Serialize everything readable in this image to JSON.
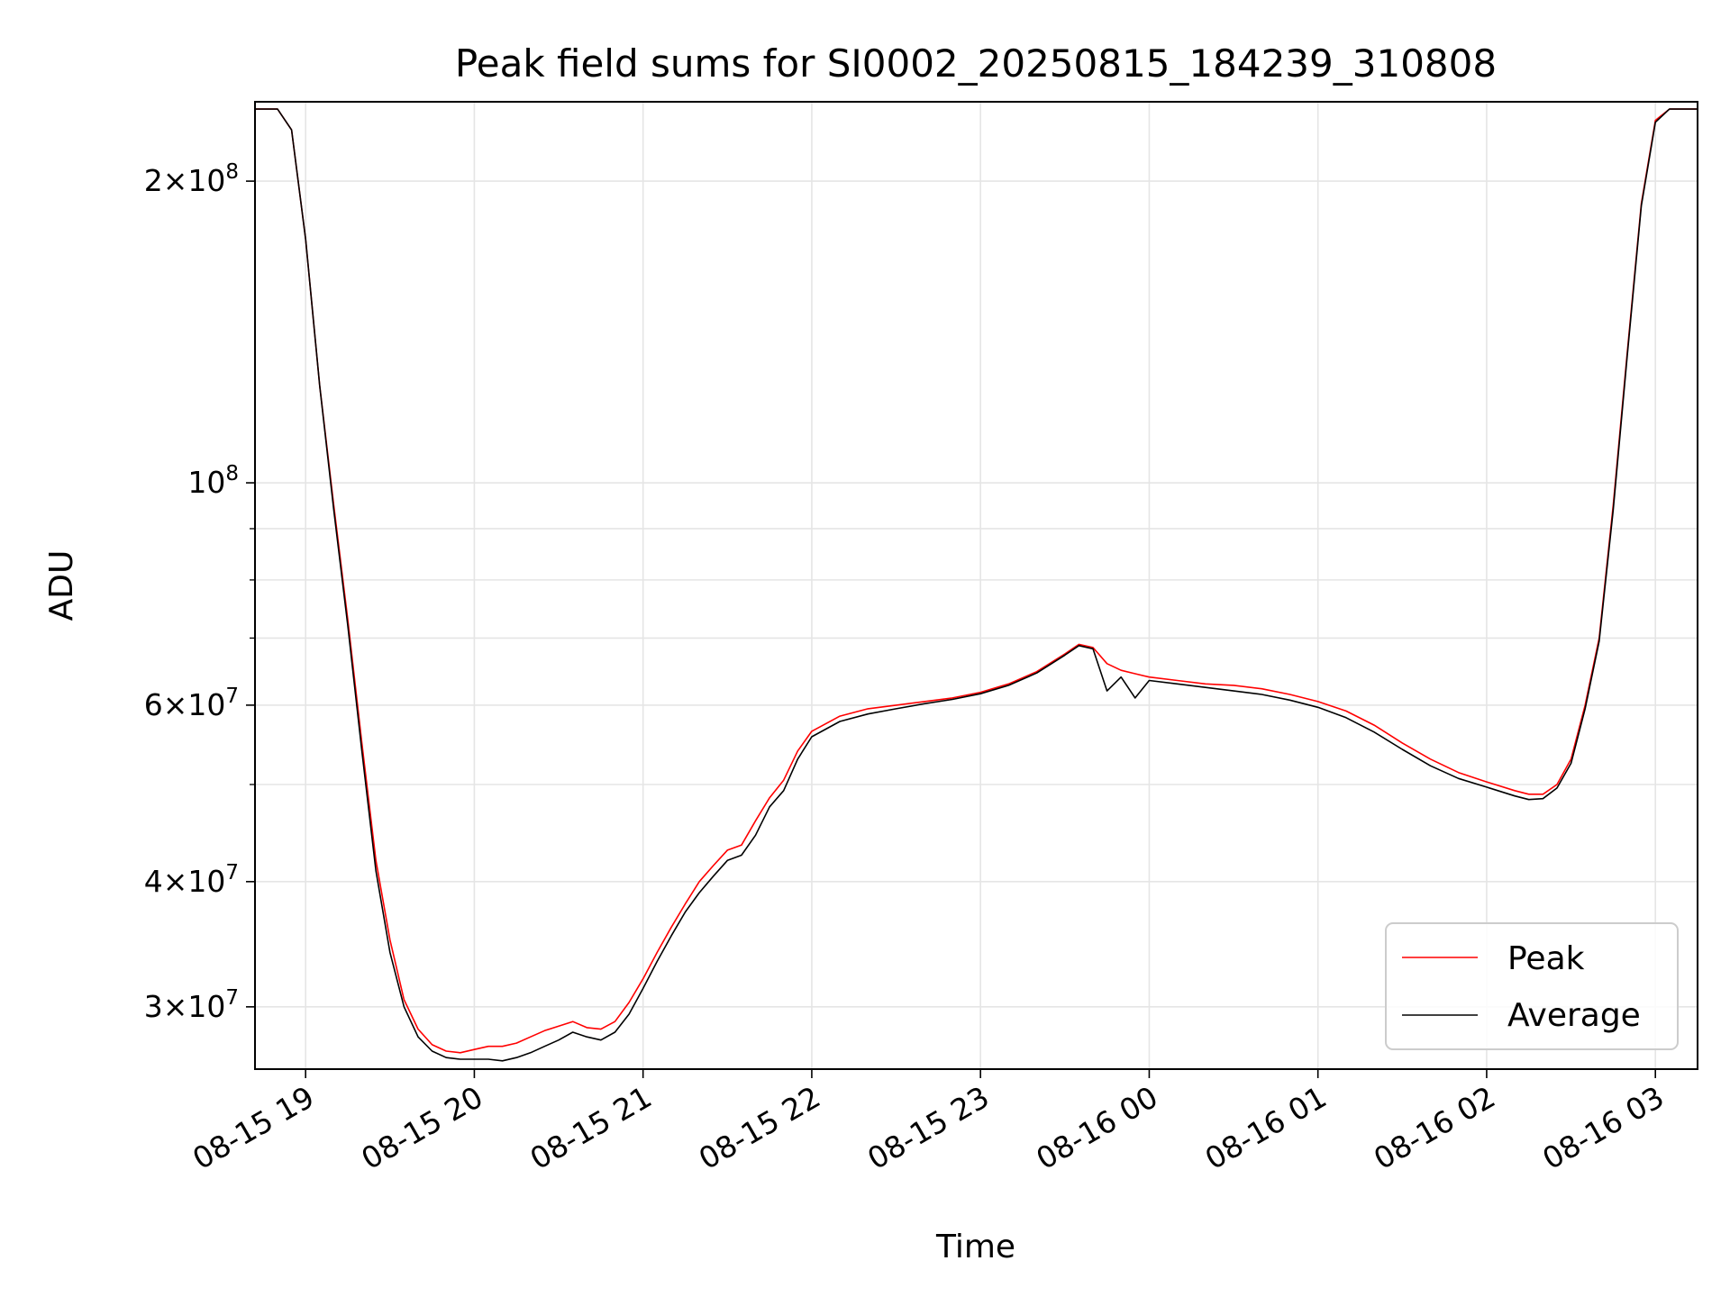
{
  "chart_data": {
    "type": "line",
    "title": "Peak field sums for SI0002_20250815_184239_310808",
    "xlabel": "Time",
    "ylabel": "ADU",
    "y_scale": "log",
    "ylim": [
      26000000,
      240000000
    ],
    "xlim": [
      "2025-08-15 18:42",
      "2025-08-16 03:15"
    ],
    "grid": true,
    "legend_position": "lower right",
    "x_ticks": [
      {
        "t": "2025-08-15 19:00",
        "label": "08-15 19"
      },
      {
        "t": "2025-08-15 20:00",
        "label": "08-15 20"
      },
      {
        "t": "2025-08-15 21:00",
        "label": "08-15 21"
      },
      {
        "t": "2025-08-15 22:00",
        "label": "08-15 22"
      },
      {
        "t": "2025-08-15 23:00",
        "label": "08-15 23"
      },
      {
        "t": "2025-08-16 00:00",
        "label": "08-16 00"
      },
      {
        "t": "2025-08-16 01:00",
        "label": "08-16 01"
      },
      {
        "t": "2025-08-16 02:00",
        "label": "08-16 02"
      },
      {
        "t": "2025-08-16 03:00",
        "label": "08-16 03"
      }
    ],
    "y_ticks_major": [
      {
        "value": 30000000,
        "base": "3",
        "exp": "7"
      },
      {
        "value": 40000000,
        "base": "4",
        "exp": "7"
      },
      {
        "value": 60000000,
        "base": "6",
        "exp": "7"
      },
      {
        "value": 100000000,
        "base": "",
        "exp": "8"
      },
      {
        "value": 200000000,
        "base": "2",
        "exp": "8"
      }
    ],
    "y_ticks_minor": [
      50000000,
      70000000,
      80000000,
      90000000
    ],
    "series": [
      {
        "name": "Peak",
        "color": "#ff0000",
        "points": [
          [
            "2025-08-15 18:42",
            236000000
          ],
          [
            "2025-08-15 18:50",
            236000000
          ],
          [
            "2025-08-15 18:55",
            225000000
          ],
          [
            "2025-08-15 19:00",
            175000000
          ],
          [
            "2025-08-15 19:05",
            125000000
          ],
          [
            "2025-08-15 19:10",
            95000000
          ],
          [
            "2025-08-15 19:15",
            73000000
          ],
          [
            "2025-08-15 19:20",
            55000000
          ],
          [
            "2025-08-15 19:25",
            42000000
          ],
          [
            "2025-08-15 19:30",
            35000000
          ],
          [
            "2025-08-15 19:35",
            30500000
          ],
          [
            "2025-08-15 19:40",
            28500000
          ],
          [
            "2025-08-15 19:45",
            27500000
          ],
          [
            "2025-08-15 19:50",
            27100000
          ],
          [
            "2025-08-15 19:55",
            27000000
          ],
          [
            "2025-08-15 20:00",
            27200000
          ],
          [
            "2025-08-15 20:05",
            27400000
          ],
          [
            "2025-08-15 20:10",
            27400000
          ],
          [
            "2025-08-15 20:15",
            27600000
          ],
          [
            "2025-08-15 20:20",
            28000000
          ],
          [
            "2025-08-15 20:25",
            28400000
          ],
          [
            "2025-08-15 20:30",
            28700000
          ],
          [
            "2025-08-15 20:35",
            29000000
          ],
          [
            "2025-08-15 20:40",
            28600000
          ],
          [
            "2025-08-15 20:45",
            28500000
          ],
          [
            "2025-08-15 20:50",
            29000000
          ],
          [
            "2025-08-15 20:55",
            30300000
          ],
          [
            "2025-08-15 21:00",
            32000000
          ],
          [
            "2025-08-15 21:05",
            34000000
          ],
          [
            "2025-08-15 21:10",
            36000000
          ],
          [
            "2025-08-15 21:15",
            38000000
          ],
          [
            "2025-08-15 21:20",
            40000000
          ],
          [
            "2025-08-15 21:25",
            41500000
          ],
          [
            "2025-08-15 21:30",
            43000000
          ],
          [
            "2025-08-15 21:35",
            43500000
          ],
          [
            "2025-08-15 21:40",
            46000000
          ],
          [
            "2025-08-15 21:45",
            48500000
          ],
          [
            "2025-08-15 21:50",
            50500000
          ],
          [
            "2025-08-15 21:55",
            54000000
          ],
          [
            "2025-08-15 22:00",
            56500000
          ],
          [
            "2025-08-15 22:10",
            58500000
          ],
          [
            "2025-08-15 22:20",
            59500000
          ],
          [
            "2025-08-15 22:30",
            60000000
          ],
          [
            "2025-08-15 22:40",
            60500000
          ],
          [
            "2025-08-15 22:50",
            61000000
          ],
          [
            "2025-08-15 23:00",
            61800000
          ],
          [
            "2025-08-15 23:10",
            63000000
          ],
          [
            "2025-08-15 23:20",
            64800000
          ],
          [
            "2025-08-15 23:30",
            67500000
          ],
          [
            "2025-08-15 23:35",
            69000000
          ],
          [
            "2025-08-15 23:40",
            68500000
          ],
          [
            "2025-08-15 23:45",
            66000000
          ],
          [
            "2025-08-15 23:50",
            65000000
          ],
          [
            "2025-08-15 23:55",
            64500000
          ],
          [
            "2025-08-16 00:00",
            64000000
          ],
          [
            "2025-08-16 00:10",
            63500000
          ],
          [
            "2025-08-16 00:20",
            63000000
          ],
          [
            "2025-08-16 00:30",
            62800000
          ],
          [
            "2025-08-16 00:40",
            62300000
          ],
          [
            "2025-08-16 00:50",
            61500000
          ],
          [
            "2025-08-16 01:00",
            60500000
          ],
          [
            "2025-08-16 01:10",
            59200000
          ],
          [
            "2025-08-16 01:20",
            57300000
          ],
          [
            "2025-08-16 01:30",
            55000000
          ],
          [
            "2025-08-16 01:40",
            53000000
          ],
          [
            "2025-08-16 01:50",
            51400000
          ],
          [
            "2025-08-16 02:00",
            50300000
          ],
          [
            "2025-08-16 02:10",
            49300000
          ],
          [
            "2025-08-16 02:15",
            48900000
          ],
          [
            "2025-08-16 02:20",
            48900000
          ],
          [
            "2025-08-16 02:25",
            50000000
          ],
          [
            "2025-08-16 02:30",
            53000000
          ],
          [
            "2025-08-16 02:35",
            60000000
          ],
          [
            "2025-08-16 02:40",
            70000000
          ],
          [
            "2025-08-16 02:45",
            95000000
          ],
          [
            "2025-08-16 02:50",
            135000000
          ],
          [
            "2025-08-16 02:55",
            190000000
          ],
          [
            "2025-08-16 03:00",
            230000000
          ],
          [
            "2025-08-16 03:05",
            236000000
          ],
          [
            "2025-08-16 03:15",
            236000000
          ]
        ]
      },
      {
        "name": "Average",
        "color": "#000000",
        "points": [
          [
            "2025-08-15 18:42",
            236000000
          ],
          [
            "2025-08-15 18:50",
            236000000
          ],
          [
            "2025-08-15 18:55",
            225000000
          ],
          [
            "2025-08-15 19:00",
            175000000
          ],
          [
            "2025-08-15 19:05",
            125000000
          ],
          [
            "2025-08-15 19:10",
            94000000
          ],
          [
            "2025-08-15 19:15",
            72000000
          ],
          [
            "2025-08-15 19:20",
            54000000
          ],
          [
            "2025-08-15 19:25",
            41000000
          ],
          [
            "2025-08-15 19:30",
            34000000
          ],
          [
            "2025-08-15 19:35",
            30000000
          ],
          [
            "2025-08-15 19:40",
            28000000
          ],
          [
            "2025-08-15 19:45",
            27100000
          ],
          [
            "2025-08-15 19:50",
            26700000
          ],
          [
            "2025-08-15 19:55",
            26600000
          ],
          [
            "2025-08-15 20:00",
            26600000
          ],
          [
            "2025-08-15 20:05",
            26600000
          ],
          [
            "2025-08-15 20:10",
            26500000
          ],
          [
            "2025-08-15 20:15",
            26700000
          ],
          [
            "2025-08-15 20:20",
            27000000
          ],
          [
            "2025-08-15 20:25",
            27400000
          ],
          [
            "2025-08-15 20:30",
            27800000
          ],
          [
            "2025-08-15 20:35",
            28300000
          ],
          [
            "2025-08-15 20:40",
            28000000
          ],
          [
            "2025-08-15 20:45",
            27800000
          ],
          [
            "2025-08-15 20:50",
            28300000
          ],
          [
            "2025-08-15 20:55",
            29500000
          ],
          [
            "2025-08-15 21:00",
            31300000
          ],
          [
            "2025-08-15 21:05",
            33300000
          ],
          [
            "2025-08-15 21:10",
            35300000
          ],
          [
            "2025-08-15 21:15",
            37300000
          ],
          [
            "2025-08-15 21:20",
            39000000
          ],
          [
            "2025-08-15 21:25",
            40500000
          ],
          [
            "2025-08-15 21:30",
            42000000
          ],
          [
            "2025-08-15 21:35",
            42500000
          ],
          [
            "2025-08-15 21:40",
            44500000
          ],
          [
            "2025-08-15 21:45",
            47500000
          ],
          [
            "2025-08-15 21:50",
            49300000
          ],
          [
            "2025-08-15 21:55",
            53000000
          ],
          [
            "2025-08-15 22:00",
            55800000
          ],
          [
            "2025-08-15 22:10",
            57800000
          ],
          [
            "2025-08-15 22:20",
            58800000
          ],
          [
            "2025-08-15 22:30",
            59500000
          ],
          [
            "2025-08-15 22:40",
            60200000
          ],
          [
            "2025-08-15 22:50",
            60800000
          ],
          [
            "2025-08-15 23:00",
            61600000
          ],
          [
            "2025-08-15 23:10",
            62800000
          ],
          [
            "2025-08-15 23:20",
            64600000
          ],
          [
            "2025-08-15 23:30",
            67300000
          ],
          [
            "2025-08-15 23:35",
            68800000
          ],
          [
            "2025-08-15 23:40",
            68300000
          ],
          [
            "2025-08-15 23:45",
            62000000
          ],
          [
            "2025-08-15 23:50",
            64000000
          ],
          [
            "2025-08-15 23:55",
            61000000
          ],
          [
            "2025-08-16 00:00",
            63500000
          ],
          [
            "2025-08-16 00:10",
            63000000
          ],
          [
            "2025-08-16 00:20",
            62500000
          ],
          [
            "2025-08-16 00:30",
            62000000
          ],
          [
            "2025-08-16 00:40",
            61500000
          ],
          [
            "2025-08-16 00:50",
            60700000
          ],
          [
            "2025-08-16 01:00",
            59700000
          ],
          [
            "2025-08-16 01:10",
            58300000
          ],
          [
            "2025-08-16 01:20",
            56400000
          ],
          [
            "2025-08-16 01:30",
            54200000
          ],
          [
            "2025-08-16 01:40",
            52200000
          ],
          [
            "2025-08-16 01:50",
            50700000
          ],
          [
            "2025-08-16 02:00",
            49700000
          ],
          [
            "2025-08-16 02:10",
            48700000
          ],
          [
            "2025-08-16 02:15",
            48300000
          ],
          [
            "2025-08-16 02:20",
            48400000
          ],
          [
            "2025-08-16 02:25",
            49600000
          ],
          [
            "2025-08-16 02:30",
            52500000
          ],
          [
            "2025-08-16 02:35",
            59500000
          ],
          [
            "2025-08-16 02:40",
            69500000
          ],
          [
            "2025-08-16 02:45",
            94000000
          ],
          [
            "2025-08-16 02:50",
            134000000
          ],
          [
            "2025-08-16 02:55",
            189000000
          ],
          [
            "2025-08-16 03:00",
            229000000
          ],
          [
            "2025-08-16 03:05",
            236000000
          ],
          [
            "2025-08-16 03:15",
            236000000
          ]
        ]
      }
    ]
  }
}
